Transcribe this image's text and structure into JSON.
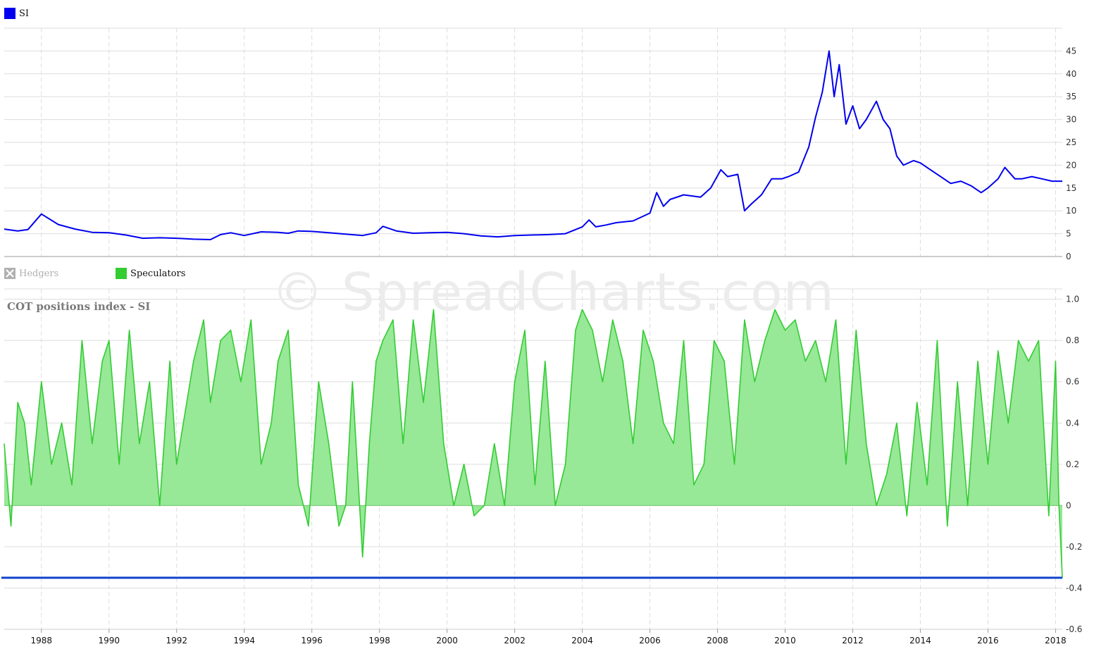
{
  "watermark": "© SpreadCharts.com",
  "colors": {
    "price_line": "#0000ee",
    "spec_line": "#33cc33",
    "spec_fill": "#97e897",
    "reference_line": "#1144cc",
    "hedgers_disabled": "#b0b0b0",
    "grid": "#dddddd"
  },
  "chart_data": [
    {
      "type": "line",
      "legend": [
        {
          "name": "SI",
          "color": "#0000ee"
        }
      ],
      "ylim": [
        0,
        50
      ],
      "yticks": [
        0,
        5,
        10,
        15,
        20,
        25,
        30,
        35,
        40,
        45
      ],
      "grid": true,
      "series": [
        {
          "name": "SI",
          "x": [
            1986.9,
            1987.3,
            1987.6,
            1988.0,
            1988.5,
            1989.0,
            1989.5,
            1990.0,
            1990.5,
            1991.0,
            1991.5,
            1992.0,
            1992.5,
            1993.0,
            1993.3,
            1993.6,
            1994.0,
            1994.5,
            1995.0,
            1995.3,
            1995.6,
            1996.0,
            1996.5,
            1997.0,
            1997.5,
            1997.9,
            1998.1,
            1998.5,
            1999.0,
            1999.5,
            2000.0,
            2000.5,
            2001.0,
            2001.5,
            2002.0,
            2002.5,
            2003.0,
            2003.5,
            2004.0,
            2004.2,
            2004.4,
            2004.7,
            2005.0,
            2005.5,
            2006.0,
            2006.2,
            2006.4,
            2006.6,
            2007.0,
            2007.5,
            2007.8,
            2008.1,
            2008.3,
            2008.6,
            2008.8,
            2009.0,
            2009.3,
            2009.6,
            2009.9,
            2010.1,
            2010.4,
            2010.7,
            2010.9,
            2011.1,
            2011.3,
            2011.45,
            2011.6,
            2011.8,
            2012.0,
            2012.2,
            2012.4,
            2012.7,
            2012.9,
            2013.1,
            2013.3,
            2013.5,
            2013.8,
            2014.0,
            2014.3,
            2014.6,
            2014.9,
            2015.2,
            2015.5,
            2015.8,
            2016.0,
            2016.3,
            2016.5,
            2016.8,
            2017.0,
            2017.3,
            2017.6,
            2017.9,
            2018.2
          ],
          "y": [
            6.0,
            5.6,
            5.9,
            9.3,
            7.0,
            6.0,
            5.3,
            5.2,
            4.7,
            4.0,
            4.1,
            4.0,
            3.8,
            3.7,
            4.8,
            5.2,
            4.6,
            5.4,
            5.3,
            5.1,
            5.6,
            5.5,
            5.2,
            4.9,
            4.6,
            5.2,
            6.6,
            5.6,
            5.1,
            5.2,
            5.3,
            5.0,
            4.5,
            4.3,
            4.6,
            4.7,
            4.8,
            5.0,
            6.5,
            8.0,
            6.5,
            6.9,
            7.4,
            7.8,
            9.5,
            14.0,
            11.0,
            12.5,
            13.5,
            13.0,
            15.0,
            19.0,
            17.5,
            18.0,
            10.0,
            11.5,
            13.5,
            17.0,
            17.0,
            17.5,
            18.5,
            24.0,
            30.5,
            36.0,
            45.0,
            35.0,
            42.0,
            29.0,
            33.0,
            28.0,
            30.0,
            34.0,
            30.0,
            28.0,
            22.0,
            20.0,
            21.0,
            20.5,
            19.0,
            17.5,
            16.0,
            16.5,
            15.5,
            14.0,
            15.0,
            17.0,
            19.5,
            17.0,
            17.0,
            17.5,
            17.0,
            16.5,
            16.5
          ]
        }
      ]
    },
    {
      "type": "area",
      "title": "COT positions index - SI",
      "legend": [
        {
          "name": "Hedgers",
          "color": "#b0b0b0",
          "enabled": false
        },
        {
          "name": "Speculators",
          "color": "#33cc33",
          "enabled": true
        }
      ],
      "ylim": [
        -0.6,
        1.05
      ],
      "yticks": [
        -0.6,
        -0.4,
        -0.2,
        0,
        0.2,
        0.4,
        0.6,
        0.8,
        1.0
      ],
      "xticks": [
        "1988",
        "1990",
        "1992",
        "1994",
        "1996",
        "1998",
        "2000",
        "2002",
        "2004",
        "2006",
        "2008",
        "2010",
        "2012",
        "2014",
        "2016",
        "2018"
      ],
      "xlim": [
        1986.9,
        2018.2
      ],
      "grid": true,
      "reference_value": -0.35,
      "series": [
        {
          "name": "Speculators",
          "x": [
            1986.9,
            1987.1,
            1987.3,
            1987.5,
            1987.7,
            1988.0,
            1988.3,
            1988.6,
            1988.9,
            1989.2,
            1989.5,
            1989.8,
            1990.0,
            1990.3,
            1990.6,
            1990.9,
            1991.2,
            1991.5,
            1991.8,
            1992.0,
            1992.2,
            1992.5,
            1992.8,
            1993.0,
            1993.3,
            1993.6,
            1993.9,
            1994.2,
            1994.5,
            1994.8,
            1995.0,
            1995.3,
            1995.6,
            1995.9,
            1996.2,
            1996.5,
            1996.8,
            1997.0,
            1997.2,
            1997.5,
            1997.7,
            1997.9,
            1998.1,
            1998.4,
            1998.7,
            1999.0,
            1999.3,
            1999.6,
            1999.9,
            2000.2,
            2000.5,
            2000.8,
            2001.1,
            2001.4,
            2001.7,
            2002.0,
            2002.3,
            2002.6,
            2002.9,
            2003.2,
            2003.5,
            2003.8,
            2004.0,
            2004.3,
            2004.6,
            2004.9,
            2005.2,
            2005.5,
            2005.8,
            2006.1,
            2006.4,
            2006.7,
            2007.0,
            2007.3,
            2007.6,
            2007.9,
            2008.2,
            2008.5,
            2008.8,
            2009.1,
            2009.4,
            2009.7,
            2010.0,
            2010.3,
            2010.6,
            2010.9,
            2011.2,
            2011.5,
            2011.8,
            2012.1,
            2012.4,
            2012.7,
            2013.0,
            2013.3,
            2013.6,
            2013.9,
            2014.2,
            2014.5,
            2014.8,
            2015.1,
            2015.4,
            2015.7,
            2016.0,
            2016.3,
            2016.6,
            2016.9,
            2017.2,
            2017.5,
            2017.8,
            2018.0,
            2018.1,
            2018.2
          ],
          "y": [
            0.3,
            -0.1,
            0.5,
            0.4,
            0.1,
            0.6,
            0.2,
            0.4,
            0.1,
            0.8,
            0.3,
            0.7,
            0.8,
            0.2,
            0.85,
            0.3,
            0.6,
            0.0,
            0.7,
            0.2,
            0.4,
            0.7,
            0.9,
            0.5,
            0.8,
            0.85,
            0.6,
            0.9,
            0.2,
            0.4,
            0.7,
            0.85,
            0.1,
            -0.1,
            0.6,
            0.3,
            -0.1,
            0.0,
            0.6,
            -0.25,
            0.3,
            0.7,
            0.8,
            0.9,
            0.3,
            0.9,
            0.5,
            0.95,
            0.3,
            0.0,
            0.2,
            -0.05,
            0.0,
            0.3,
            0.0,
            0.6,
            0.85,
            0.1,
            0.7,
            0.0,
            0.2,
            0.85,
            0.95,
            0.85,
            0.6,
            0.9,
            0.7,
            0.3,
            0.85,
            0.7,
            0.4,
            0.3,
            0.8,
            0.1,
            0.2,
            0.8,
            0.7,
            0.2,
            0.9,
            0.6,
            0.8,
            0.95,
            0.85,
            0.9,
            0.7,
            0.8,
            0.6,
            0.9,
            0.2,
            0.85,
            0.3,
            0.0,
            0.15,
            0.4,
            -0.05,
            0.5,
            0.1,
            0.8,
            -0.1,
            0.6,
            0.0,
            0.7,
            0.2,
            0.75,
            0.4,
            0.8,
            0.7,
            0.8,
            -0.05,
            0.7,
            0.0,
            -0.35
          ]
        }
      ]
    }
  ]
}
